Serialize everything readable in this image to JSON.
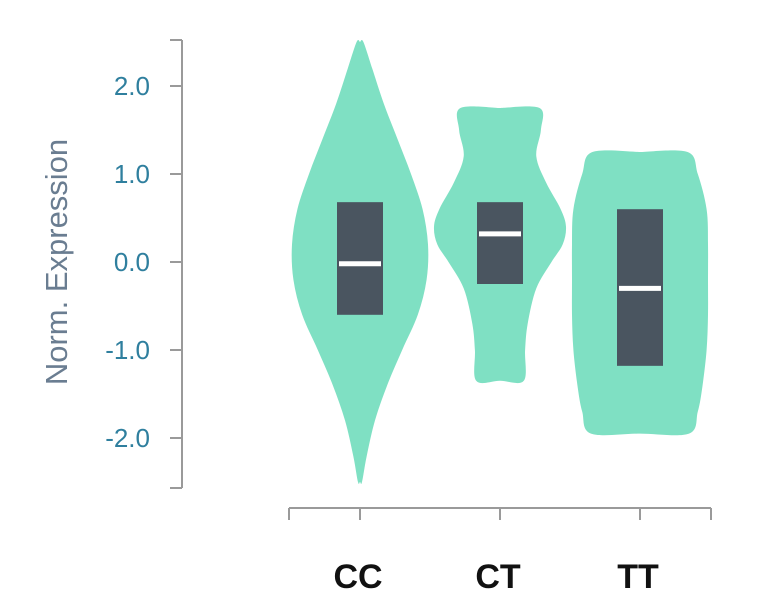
{
  "chart_data": {
    "type": "violin",
    "title": "",
    "xlabel": "",
    "ylabel": "Norm. Expression",
    "ylim": [
      -2.6,
      2.6
    ],
    "yticks": [
      2.0,
      1.0,
      0.0,
      -1.0,
      -2.0
    ],
    "ytick_labels": [
      "2.0",
      "1.0",
      "0.0",
      "-1.0",
      "-2.0"
    ],
    "categories": [
      "CC",
      "CT",
      "TT"
    ],
    "violin_color": "#7fe0c3",
    "box_color": "#4a5560",
    "median_color": "#ffffff",
    "groups": [
      {
        "category": "CC",
        "max": 2.5,
        "min": -2.5,
        "q1": -0.6,
        "median": -0.02,
        "q3": 0.68,
        "density": [
          [
            2.5,
            0.05
          ],
          [
            2.2,
            0.18
          ],
          [
            1.8,
            0.35
          ],
          [
            1.4,
            0.55
          ],
          [
            1.0,
            0.75
          ],
          [
            0.6,
            0.92
          ],
          [
            0.2,
            1.0
          ],
          [
            -0.2,
            0.98
          ],
          [
            -0.6,
            0.85
          ],
          [
            -1.0,
            0.62
          ],
          [
            -1.4,
            0.4
          ],
          [
            -1.8,
            0.22
          ],
          [
            -2.2,
            0.1
          ],
          [
            -2.5,
            0.03
          ]
        ]
      },
      {
        "category": "CT",
        "max": 1.75,
        "min": -1.35,
        "q1": -0.25,
        "median": 0.32,
        "q3": 0.68,
        "density": [
          [
            1.75,
            0.6
          ],
          [
            1.5,
            0.62
          ],
          [
            1.2,
            0.55
          ],
          [
            0.9,
            0.7
          ],
          [
            0.6,
            0.92
          ],
          [
            0.4,
            1.0
          ],
          [
            0.2,
            0.95
          ],
          [
            0.0,
            0.78
          ],
          [
            -0.3,
            0.55
          ],
          [
            -0.7,
            0.42
          ],
          [
            -1.0,
            0.38
          ],
          [
            -1.35,
            0.36
          ]
        ]
      },
      {
        "category": "TT",
        "max": 1.25,
        "min": -1.95,
        "q1": -1.18,
        "median": -0.3,
        "q3": 0.6,
        "density": [
          [
            1.25,
            0.7
          ],
          [
            1.0,
            0.85
          ],
          [
            0.6,
            0.98
          ],
          [
            0.2,
            1.0
          ],
          [
            -0.2,
            1.0
          ],
          [
            -0.6,
            1.0
          ],
          [
            -1.0,
            0.98
          ],
          [
            -1.4,
            0.92
          ],
          [
            -1.7,
            0.85
          ],
          [
            -1.95,
            0.72
          ]
        ]
      }
    ],
    "grid": false,
    "legend": "none"
  }
}
